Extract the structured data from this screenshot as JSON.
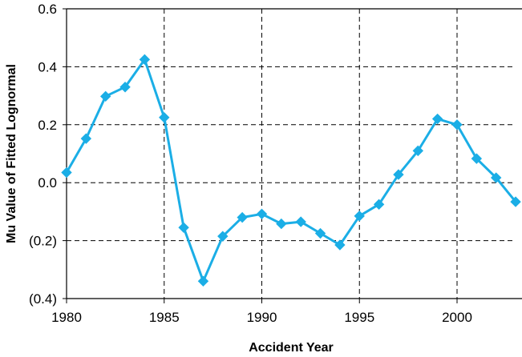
{
  "chart_data": {
    "type": "line",
    "title": "",
    "xlabel": "Accident Year",
    "ylabel": "Mu Value of Fitted Lognormal",
    "xlim": [
      1980,
      2003
    ],
    "ylim": [
      -0.4,
      0.6
    ],
    "x_ticks": [
      1980,
      1985,
      1990,
      1995,
      2000
    ],
    "x_tick_labels": [
      "1980",
      "1985",
      "1990",
      "1995",
      "2000"
    ],
    "y_ticks": [
      0.6,
      0.4,
      0.2,
      0.0,
      -0.2,
      -0.4
    ],
    "y_tick_labels": [
      "0.6",
      "0.4",
      "0.2",
      "0.0",
      "(0.2)",
      "(0.4)"
    ],
    "grid": true,
    "line_color": "#1BAEE6",
    "marker": "diamond",
    "x": [
      1980,
      1981,
      1982,
      1983,
      1984,
      1985,
      1986,
      1987,
      1988,
      1989,
      1990,
      1991,
      1992,
      1993,
      1994,
      1995,
      1996,
      1997,
      1998,
      1999,
      2000,
      2001,
      2002,
      2003
    ],
    "values": [
      0.035,
      0.152,
      0.298,
      0.33,
      0.425,
      0.225,
      -0.155,
      -0.34,
      -0.185,
      -0.12,
      -0.108,
      -0.142,
      -0.135,
      -0.175,
      -0.215,
      -0.115,
      -0.075,
      0.028,
      0.11,
      0.22,
      0.2,
      0.083,
      0.017,
      -0.066
    ]
  }
}
